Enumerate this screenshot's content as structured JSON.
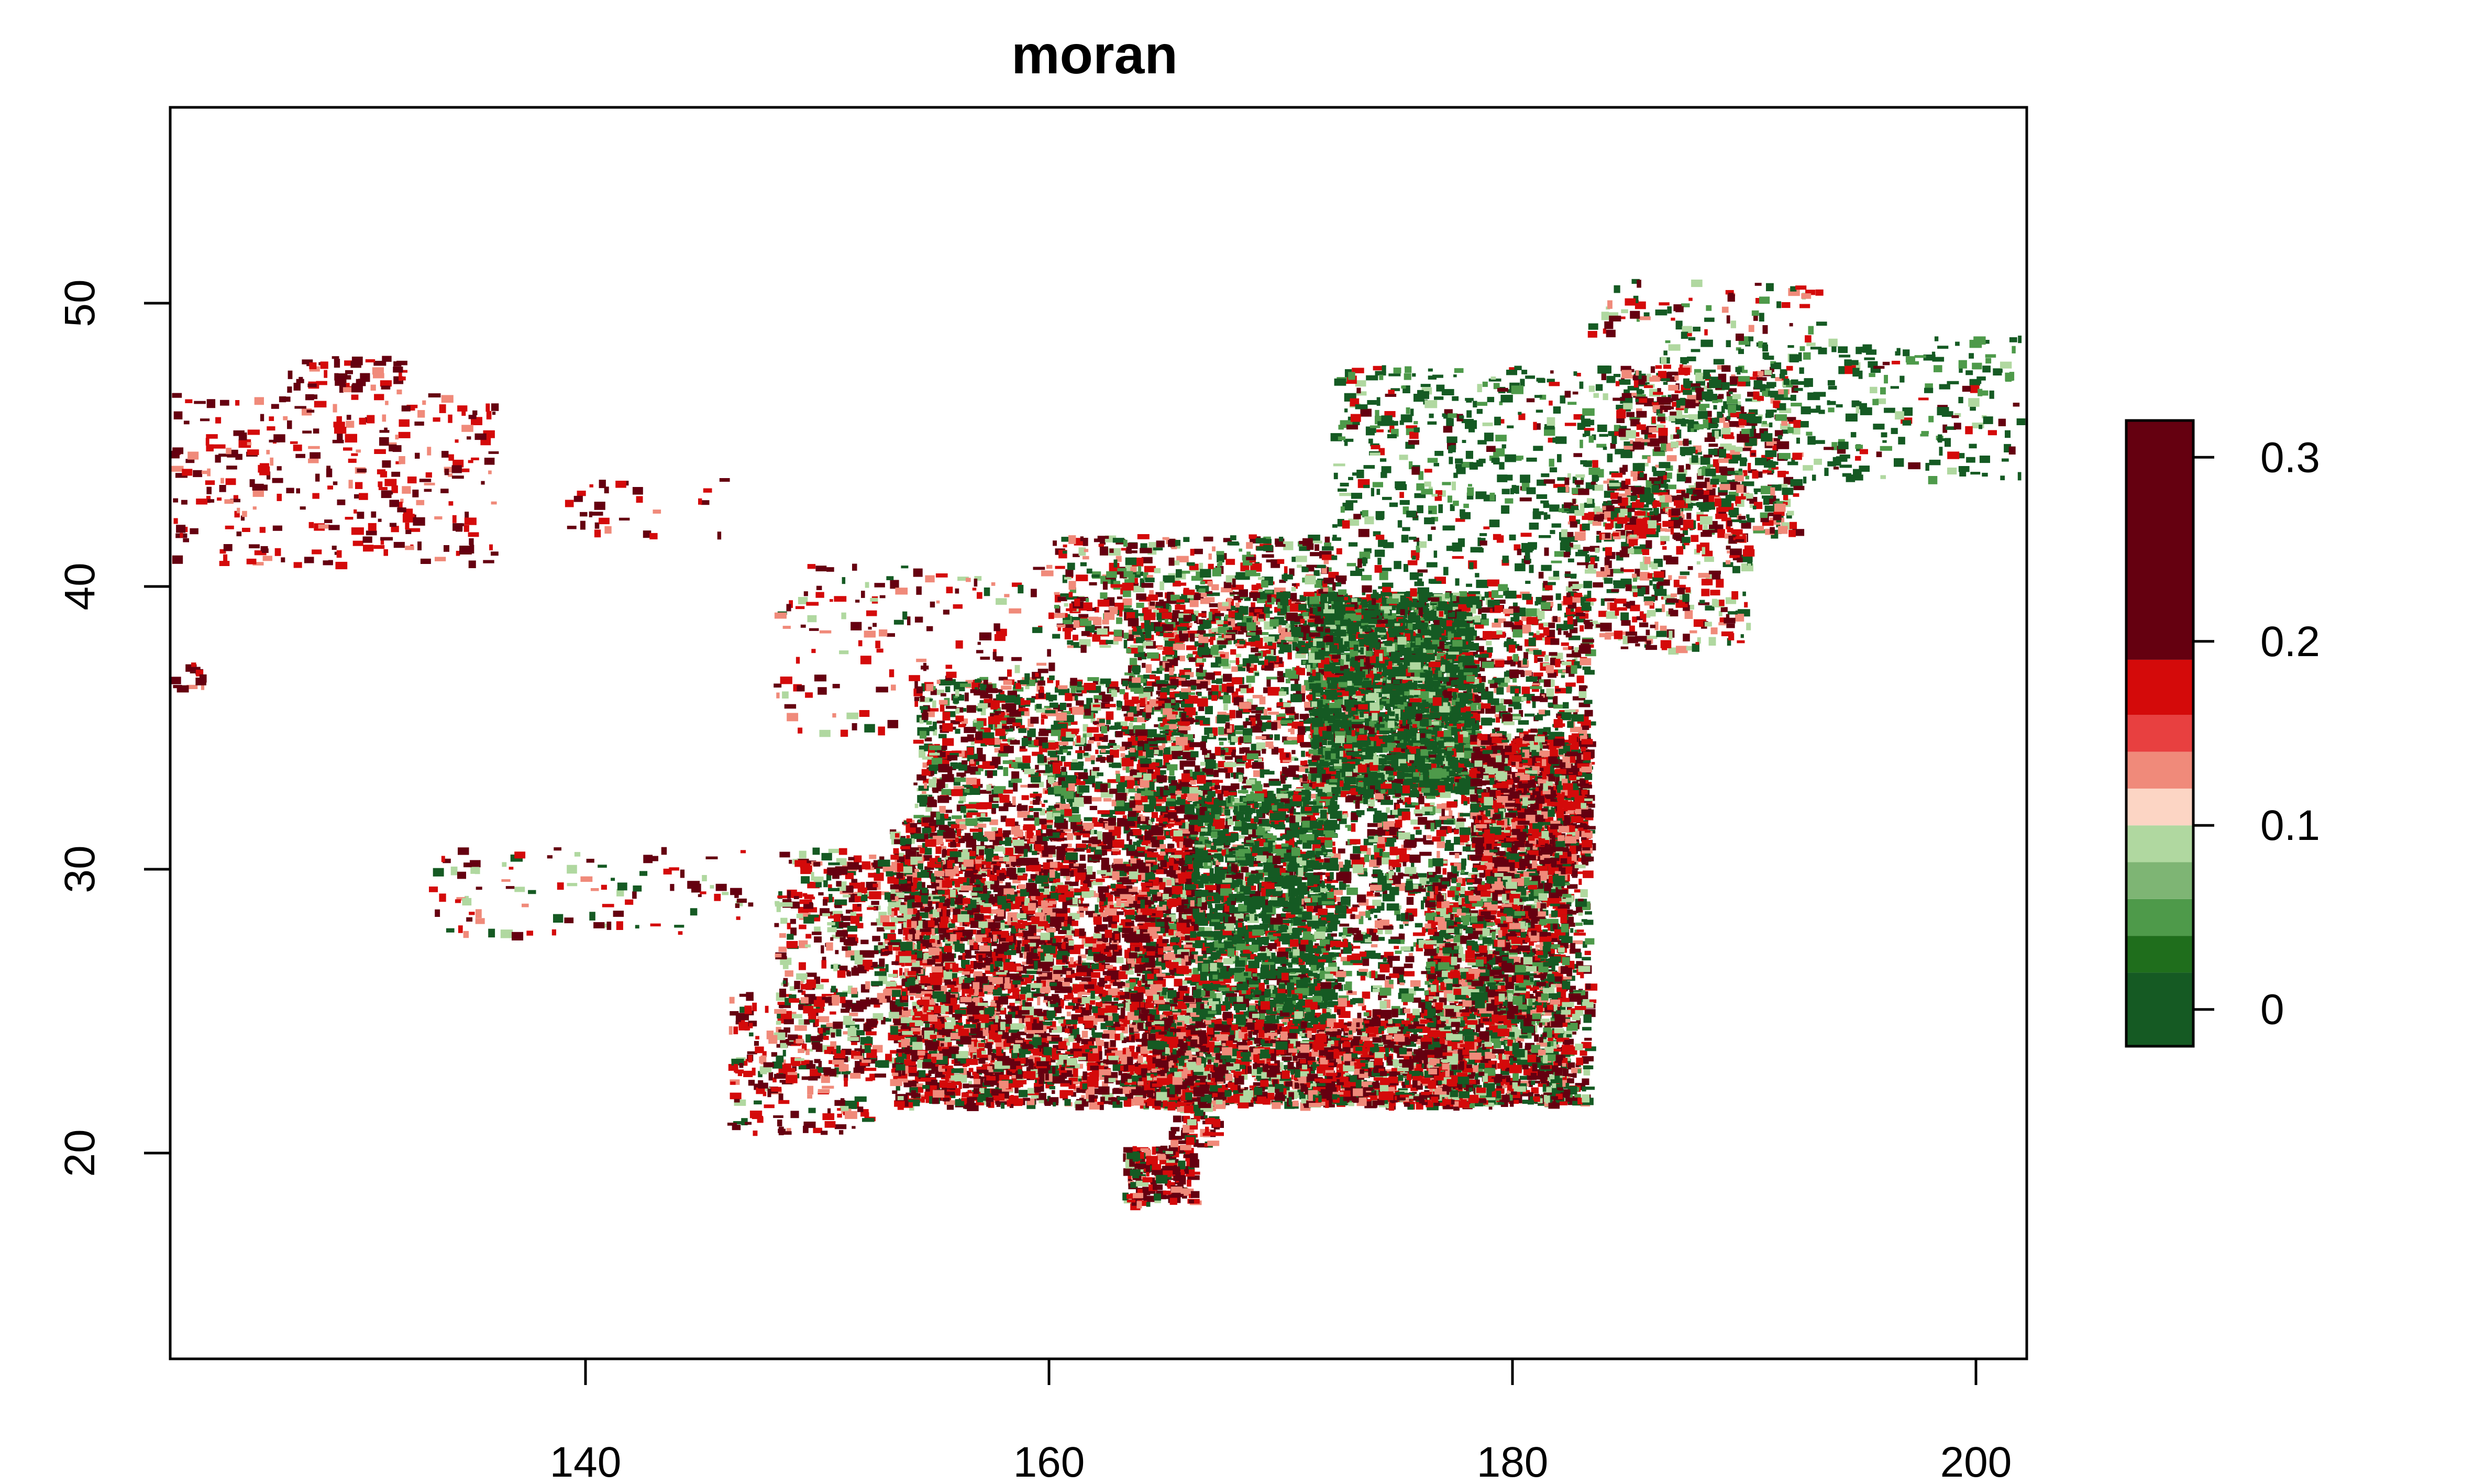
{
  "title": "moran",
  "map": {
    "x_ticks": [
      "140",
      "160",
      "180",
      "200"
    ],
    "y_ticks": [
      "20",
      "30",
      "40",
      "50"
    ],
    "x_range": [
      122,
      202
    ],
    "y_range": [
      13,
      57
    ]
  },
  "legend": {
    "ticks": [
      "0",
      "0.1",
      "0.2",
      "0.3"
    ],
    "range": [
      -0.02,
      0.32
    ],
    "bins": [
      {
        "from": -0.02,
        "to": 0.02,
        "color": "#155a23"
      },
      {
        "from": 0.02,
        "to": 0.04,
        "color": "#1f6e1c"
      },
      {
        "from": 0.04,
        "to": 0.06,
        "color": "#4e9a4a"
      },
      {
        "from": 0.06,
        "to": 0.08,
        "color": "#7eb574"
      },
      {
        "from": 0.08,
        "to": 0.1,
        "color": "#b0d8a0"
      },
      {
        "from": 0.1,
        "to": 0.12,
        "color": "#fcd5c4"
      },
      {
        "from": 0.12,
        "to": 0.14,
        "color": "#f08a7a"
      },
      {
        "from": 0.14,
        "to": 0.16,
        "color": "#e84040"
      },
      {
        "from": 0.16,
        "to": 0.19,
        "color": "#d40a0a"
      },
      {
        "from": 0.19,
        "to": 0.32,
        "color": "#650010"
      }
    ]
  },
  "colors": {
    "green_dark": "#155a23",
    "green_mid": "#4e9a4a",
    "green_light": "#b0d8a0",
    "red_light": "#f08a7a",
    "red": "#d40a0a",
    "red_dark": "#650010"
  }
}
